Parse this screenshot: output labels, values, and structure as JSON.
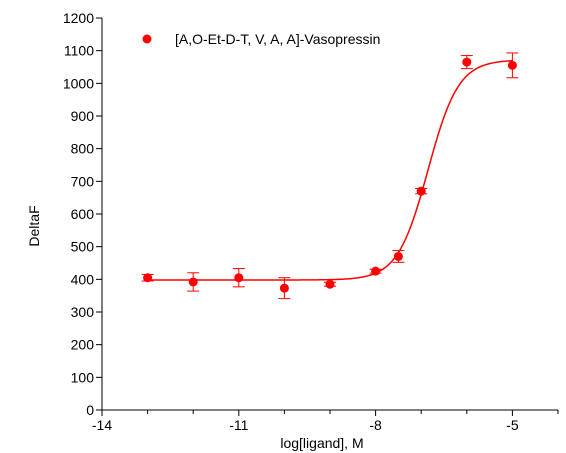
{
  "chart_data": {
    "type": "scatter",
    "title": "",
    "xlabel": "log[ligand], M",
    "ylabel": "DeltaF",
    "xlim": [
      -14,
      -4
    ],
    "ylim": [
      0,
      1200
    ],
    "x_ticks": [
      -14,
      -11,
      -8,
      -5
    ],
    "x_tick_labels": [
      "-14",
      "-11",
      "-8",
      "-5"
    ],
    "y_ticks": [
      0,
      100,
      200,
      300,
      400,
      500,
      600,
      700,
      800,
      900,
      1000,
      1100,
      1200
    ],
    "y_tick_labels": [
      "0",
      "100",
      "200",
      "300",
      "400",
      "500",
      "600",
      "700",
      "800",
      "900",
      "1000",
      "1100",
      "1200"
    ],
    "grid": false,
    "legend_position": "top-left",
    "series": [
      {
        "name": "[A,O-Et-D-T, V, A, A]-Vasopressin",
        "color": "#ff0000",
        "marker": "circle",
        "points": [
          {
            "x": -13,
            "y": 405,
            "err": 10
          },
          {
            "x": -12,
            "y": 392,
            "err": 28
          },
          {
            "x": -11,
            "y": 405,
            "err": 28
          },
          {
            "x": -10,
            "y": 373,
            "err": 32
          },
          {
            "x": -9,
            "y": 385,
            "err": 6
          },
          {
            "x": -8,
            "y": 425,
            "err": 6
          },
          {
            "x": -7.5,
            "y": 470,
            "err": 18
          },
          {
            "x": -7,
            "y": 670,
            "err": 8
          },
          {
            "x": -6,
            "y": 1065,
            "err": 20
          },
          {
            "x": -5,
            "y": 1055,
            "err": 38
          }
        ]
      }
    ],
    "fit_curve": {
      "model": "sigmoidal dose-response",
      "bottom": 398,
      "top": 1072,
      "log_ec50": -6.85,
      "hill_slope": 1.3,
      "x_range": [
        -13,
        -5
      ],
      "color": "#ff0000"
    }
  }
}
